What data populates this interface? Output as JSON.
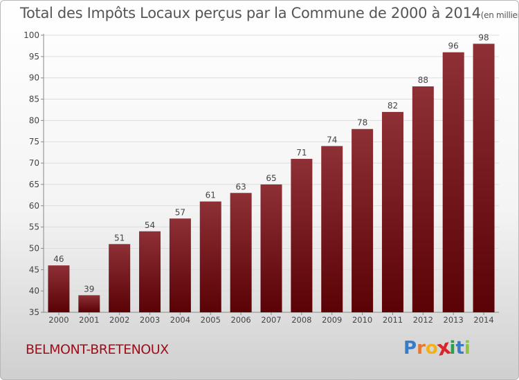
{
  "header": {
    "title": "Total des Impôts Locaux perçus par la Commune de 2000 à 2014",
    "unit": "(en milliers d'€)"
  },
  "footer": {
    "commune": "BELMONT-BRETENOUX",
    "logo_letters": [
      "P",
      "r",
      "o",
      "x",
      "i",
      "t",
      "i"
    ],
    "logo_colors": [
      "#3a7bc8",
      "#e8762b",
      "#f0b11a",
      "#d9262c",
      "#2e9e48",
      "#3a7bc8",
      "#8fc43f"
    ]
  },
  "colors": {
    "bar_top": "#8e3036",
    "bar_bottom": "#5a0205",
    "gridline": "#dddddd",
    "axis": "#888888",
    "text": "#444444"
  },
  "chart_data": {
    "type": "bar",
    "title": "Total des Impôts Locaux perçus par la Commune de 2000 à 2014",
    "xlabel": "",
    "ylabel": "",
    "categories": [
      "2000",
      "2001",
      "2002",
      "2003",
      "2004",
      "2005",
      "2006",
      "2007",
      "2008",
      "2009",
      "2010",
      "2011",
      "2012",
      "2013",
      "2014"
    ],
    "values": [
      46,
      39,
      51,
      54,
      57,
      61,
      63,
      65,
      71,
      74,
      78,
      82,
      88,
      96,
      98
    ],
    "ylim": [
      35,
      100
    ],
    "yticks": [
      35,
      40,
      45,
      50,
      55,
      60,
      65,
      70,
      75,
      80,
      85,
      90,
      95,
      100
    ],
    "grid": true
  }
}
